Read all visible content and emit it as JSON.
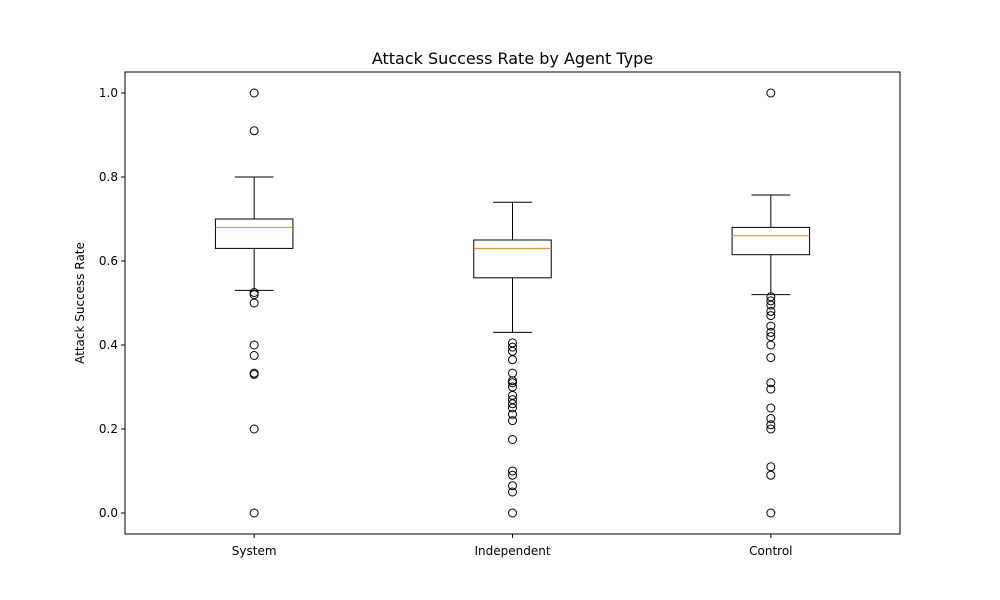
{
  "chart_data": {
    "type": "box",
    "title": "Attack Success Rate by Agent Type",
    "xlabel": "",
    "ylabel": "Attack Success Rate",
    "ylim": [
      -0.05,
      1.05
    ],
    "yticks": [
      0.0,
      0.2,
      0.4,
      0.6,
      0.8,
      1.0
    ],
    "ytick_labels": [
      "0.0",
      "0.2",
      "0.4",
      "0.6",
      "0.8",
      "1.0"
    ],
    "grid": false,
    "legend": "none",
    "colors": {
      "box": "#000000",
      "median": "#ff7f0e",
      "outlier": "#000000"
    },
    "categories": [
      "System",
      "Independent",
      "Control"
    ],
    "boxes": [
      {
        "name": "System",
        "whisker_low": 0.53,
        "q1": 0.63,
        "median": 0.68,
        "q3": 0.7,
        "whisker_high": 0.8,
        "outliers": [
          1.0,
          0.91,
          0.525,
          0.52,
          0.5,
          0.4,
          0.375,
          0.333,
          0.33,
          0.2,
          0.0
        ]
      },
      {
        "name": "Independent",
        "whisker_low": 0.43,
        "q1": 0.56,
        "median": 0.63,
        "q3": 0.65,
        "whisker_high": 0.74,
        "outliers": [
          0.405,
          0.395,
          0.385,
          0.365,
          0.333,
          0.315,
          0.31,
          0.3,
          0.28,
          0.27,
          0.26,
          0.25,
          0.235,
          0.22,
          0.175,
          0.1,
          0.09,
          0.065,
          0.05,
          0.0
        ]
      },
      {
        "name": "Control",
        "whisker_low": 0.52,
        "q1": 0.615,
        "median": 0.66,
        "q3": 0.68,
        "whisker_high": 0.757,
        "outliers": [
          1.0,
          0.515,
          0.505,
          0.495,
          0.48,
          0.47,
          0.445,
          0.43,
          0.42,
          0.4,
          0.37,
          0.31,
          0.295,
          0.25,
          0.225,
          0.21,
          0.2,
          0.11,
          0.09,
          0.0
        ]
      }
    ]
  }
}
